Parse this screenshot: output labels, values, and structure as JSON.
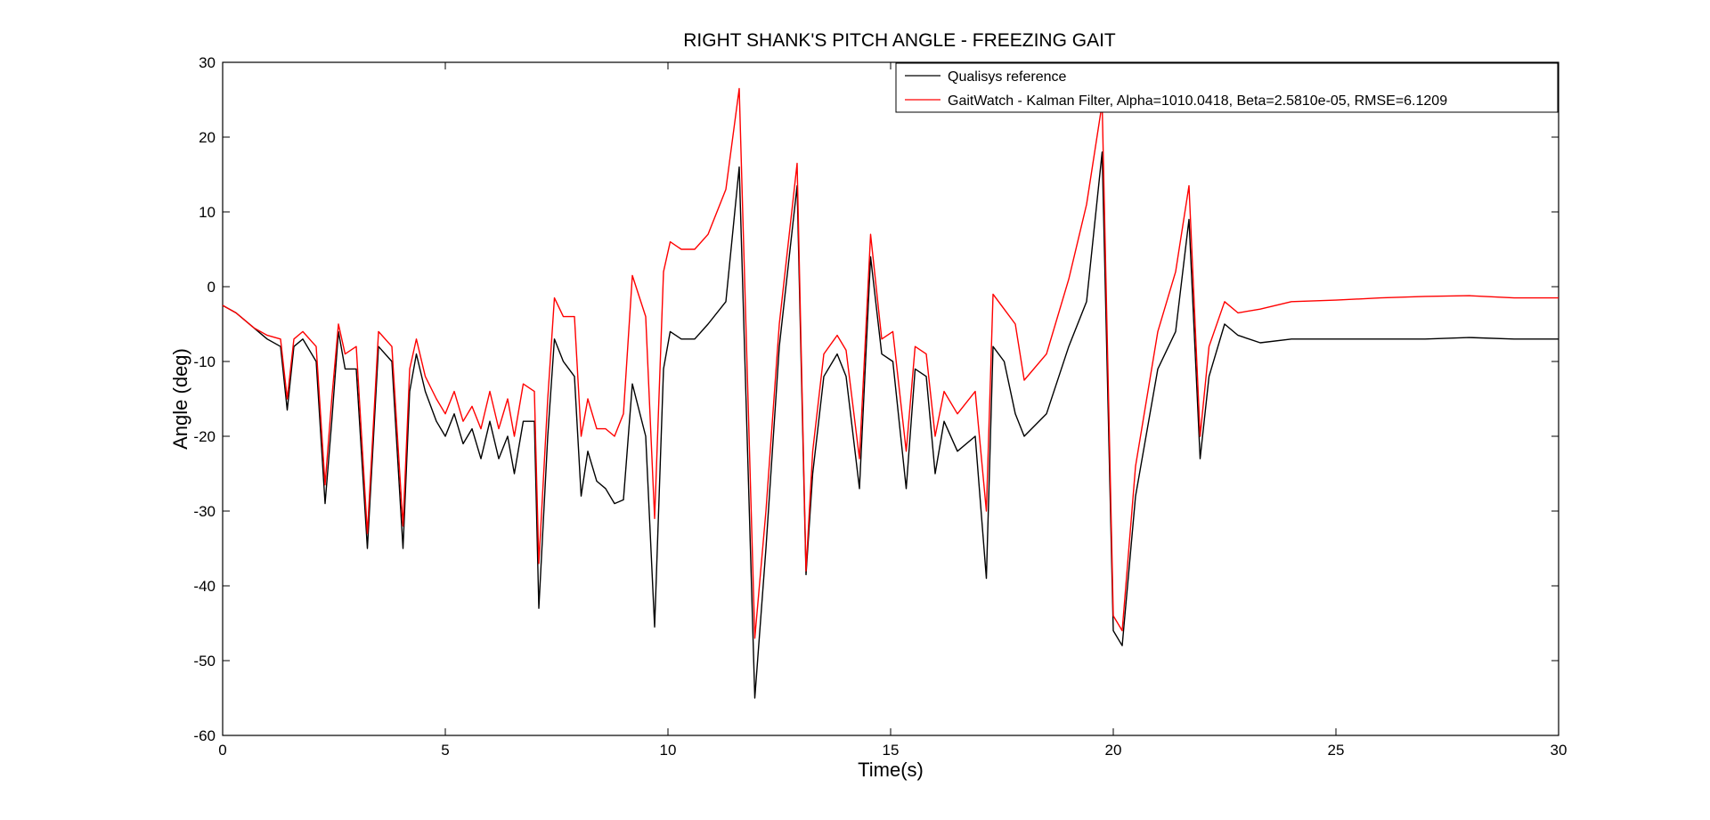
{
  "chart_data": {
    "type": "line",
    "title": "RIGHT SHANK'S PITCH ANGLE - FREEZING GAIT",
    "xlabel": "Time(s)",
    "ylabel": "Angle (deg)",
    "xlim": [
      0,
      30
    ],
    "ylim": [
      -60,
      30
    ],
    "xticks": [
      0,
      5,
      10,
      15,
      20,
      25,
      30
    ],
    "yticks": [
      30,
      20,
      10,
      0,
      -10,
      -20,
      -30,
      -40,
      -50,
      -60
    ],
    "grid": false,
    "legend_position": "top-right",
    "series": [
      {
        "name": "Qualisys reference",
        "color": "#000000",
        "x": [
          0,
          0.3,
          0.7,
          1.0,
          1.3,
          1.45,
          1.6,
          1.8,
          2.1,
          2.3,
          2.45,
          2.6,
          2.75,
          3.0,
          3.25,
          3.5,
          3.8,
          4.05,
          4.2,
          4.35,
          4.55,
          4.8,
          5.0,
          5.2,
          5.4,
          5.6,
          5.8,
          6.0,
          6.2,
          6.4,
          6.55,
          6.75,
          7.0,
          7.1,
          7.3,
          7.45,
          7.65,
          7.9,
          8.05,
          8.2,
          8.4,
          8.6,
          8.8,
          9.0,
          9.2,
          9.5,
          9.7,
          9.9,
          10.05,
          10.3,
          10.6,
          10.9,
          11.3,
          11.6,
          11.95,
          12.2,
          12.5,
          12.9,
          13.1,
          13.25,
          13.5,
          13.8,
          14.0,
          14.3,
          14.55,
          14.8,
          15.05,
          15.35,
          15.55,
          15.8,
          16.0,
          16.2,
          16.5,
          16.9,
          17.15,
          17.3,
          17.55,
          17.8,
          18.0,
          18.5,
          19.0,
          19.4,
          19.75,
          20.0,
          20.2,
          20.5,
          21.0,
          21.4,
          21.7,
          21.95,
          22.15,
          22.5,
          22.8,
          23.3,
          24.0,
          25.0,
          26.0,
          27.0,
          28.0,
          29.0,
          30.0
        ],
        "y": [
          -2.5,
          -3.5,
          -5.5,
          -7,
          -8,
          -16.5,
          -8,
          -7,
          -10,
          -29,
          -18,
          -6,
          -11,
          -11,
          -35,
          -8,
          -10,
          -35,
          -14,
          -9,
          -14,
          -18,
          -20,
          -17,
          -21,
          -19,
          -23,
          -18,
          -23,
          -20,
          -25,
          -18,
          -18,
          -43,
          -20,
          -7,
          -10,
          -12,
          -28,
          -22,
          -26,
          -27,
          -29,
          -28.5,
          -13,
          -20,
          -45.5,
          -11,
          -6,
          -7,
          -7,
          -5,
          -2,
          16,
          -55,
          -35,
          -8,
          13.5,
          -38.5,
          -25,
          -12,
          -9,
          -12,
          -27,
          4,
          -9,
          -10,
          -27,
          -11,
          -12,
          -25,
          -18,
          -22,
          -20,
          -39,
          -8,
          -10,
          -17,
          -20,
          -17,
          -8,
          -2,
          18,
          -46,
          -48,
          -28,
          -11,
          -6,
          9,
          -23,
          -12,
          -5,
          -6.5,
          -7.5,
          -7,
          -7,
          -7,
          -7,
          -6.8,
          -7,
          -7
        ]
      },
      {
        "name": "GaitWatch - Kalman Filter, Alpha=1010.0418, Beta=2.5810e-05, RMSE=6.1209",
        "color": "#ff0000",
        "x": [
          0,
          0.3,
          0.7,
          1.0,
          1.3,
          1.45,
          1.6,
          1.8,
          2.1,
          2.3,
          2.45,
          2.6,
          2.75,
          3.0,
          3.25,
          3.5,
          3.8,
          4.05,
          4.2,
          4.35,
          4.55,
          4.8,
          5.0,
          5.2,
          5.4,
          5.6,
          5.8,
          6.0,
          6.2,
          6.4,
          6.55,
          6.75,
          7.0,
          7.1,
          7.3,
          7.45,
          7.65,
          7.9,
          8.05,
          8.2,
          8.4,
          8.6,
          8.8,
          9.0,
          9.2,
          9.5,
          9.7,
          9.9,
          10.05,
          10.3,
          10.6,
          10.9,
          11.3,
          11.6,
          11.95,
          12.2,
          12.5,
          12.9,
          13.1,
          13.25,
          13.5,
          13.8,
          14.0,
          14.3,
          14.55,
          14.8,
          15.05,
          15.35,
          15.55,
          15.8,
          16.0,
          16.2,
          16.5,
          16.9,
          17.15,
          17.3,
          17.55,
          17.8,
          18.0,
          18.5,
          19.0,
          19.4,
          19.75,
          20.0,
          20.2,
          20.5,
          21.0,
          21.4,
          21.7,
          21.95,
          22.15,
          22.5,
          22.8,
          23.3,
          24.0,
          25.0,
          26.0,
          27.0,
          28.0,
          29.0,
          30.0
        ],
        "y": [
          -2.5,
          -3.5,
          -5.5,
          -6.5,
          -7,
          -15,
          -7,
          -6,
          -8,
          -26.5,
          -15,
          -5,
          -9,
          -8,
          -33,
          -6,
          -8,
          -32,
          -11,
          -7,
          -12,
          -15,
          -17,
          -14,
          -18,
          -16,
          -19,
          -14,
          -19,
          -15,
          -20,
          -13,
          -14,
          -37,
          -15,
          -1.5,
          -4,
          -4,
          -20,
          -15,
          -19,
          -19,
          -20,
          -17,
          1.5,
          -4,
          -31,
          2,
          6,
          5,
          5,
          7,
          13,
          26.5,
          -47,
          -30,
          -5,
          16.5,
          -38,
          -22,
          -9,
          -6.5,
          -8.5,
          -23,
          7,
          -7,
          -6,
          -22,
          -8,
          -9,
          -20,
          -14,
          -17,
          -14,
          -30,
          -1,
          -3,
          -5,
          -12.5,
          -9,
          1,
          11,
          24.5,
          -44,
          -46,
          -24,
          -6,
          2,
          13.5,
          -20,
          -8,
          -2,
          -3.5,
          -3,
          -2,
          -1.8,
          -1.5,
          -1.3,
          -1.2,
          -1.5,
          -1.5
        ]
      }
    ]
  }
}
